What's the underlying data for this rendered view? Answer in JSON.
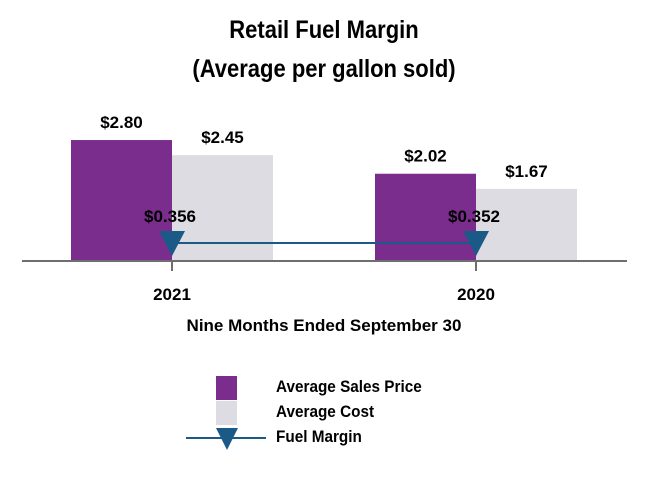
{
  "title_line1": "Retail Fuel Margin",
  "title_line2": "(Average per gallon sold)",
  "chart_data": {
    "type": "bar",
    "categories": [
      "2021",
      "2020"
    ],
    "series": [
      {
        "name": "Average Sales Price",
        "values": [
          2.8,
          2.02
        ],
        "color": "#7b2d8e",
        "labels": [
          "$2.80",
          "$2.02"
        ]
      },
      {
        "name": "Average Cost",
        "values": [
          2.45,
          1.67
        ],
        "color": "#dcdce2",
        "labels": [
          "$2.45",
          "$1.67"
        ]
      },
      {
        "name": "Fuel Margin",
        "type": "line",
        "values": [
          0.356,
          0.352
        ],
        "color": "#1b5a87",
        "labels": [
          "$0.356",
          "$0.352"
        ]
      }
    ],
    "xlabel": "Nine Months Ended September 30",
    "ylabel": "",
    "ylim": [
      0,
      3.2
    ]
  },
  "legend": [
    {
      "label": "Average Sales Price",
      "color": "#7b2d8e",
      "icon": "square"
    },
    {
      "label": "Average Cost",
      "color": "#dcdce2",
      "icon": "square"
    },
    {
      "label": "Fuel Margin",
      "color": "#1b5a87",
      "icon": "line-triangle"
    }
  ]
}
